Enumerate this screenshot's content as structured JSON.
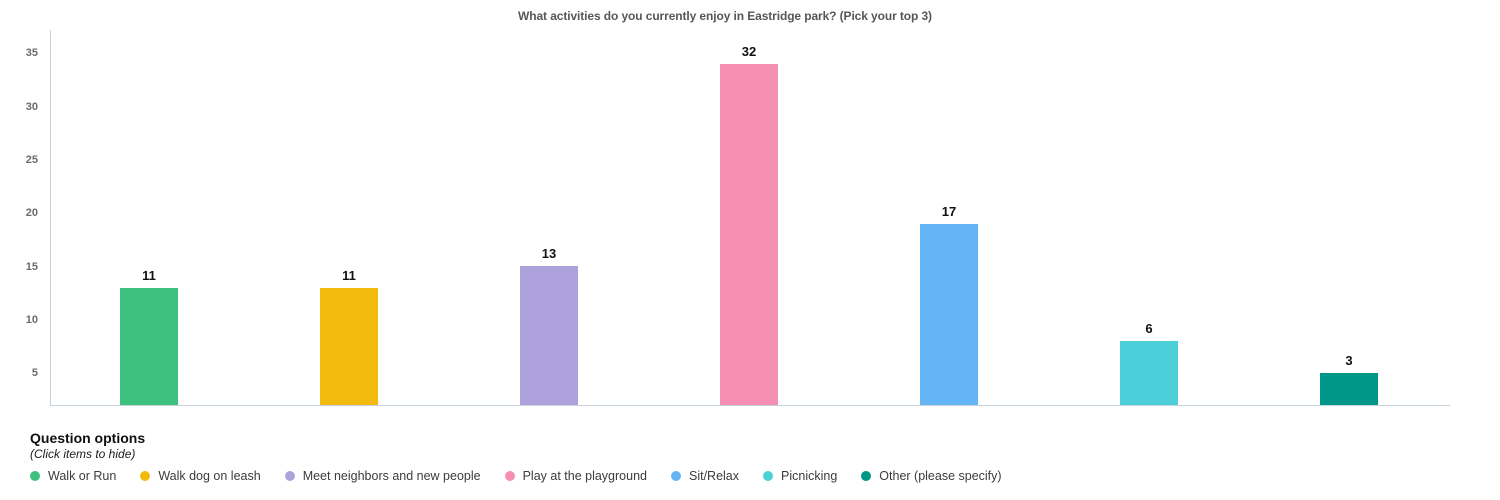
{
  "chart_data": {
    "type": "bar",
    "title": "What activities do you currently enjoy in Eastridge park? (Pick your top 3)",
    "categories": [
      "Walk or Run",
      "Walk dog on leash",
      "Meet neighbors and new people",
      "Play at the playground",
      "Sit/Relax",
      "Picnicking",
      "Other (please specify)"
    ],
    "values": [
      11,
      11,
      13,
      32,
      17,
      6,
      3
    ],
    "colors": [
      "#3EC07F",
      "#F2BA0D",
      "#ADA2DC",
      "#F48FB1",
      "#64B5F6",
      "#4CCFD9",
      "#009688"
    ],
    "value_labels": [
      "11",
      "11",
      "13",
      "32",
      "17",
      "6",
      "3"
    ],
    "y_ticks": [
      5,
      10,
      15,
      20,
      25,
      30,
      35
    ],
    "ylim": [
      0,
      35
    ],
    "xlabel": "",
    "ylabel": "",
    "grid": false,
    "legend_position": "bottom",
    "axis_color": "#C5D2DD"
  },
  "legend": {
    "heading": "Question options",
    "subheading": "(Click items to hide)"
  }
}
